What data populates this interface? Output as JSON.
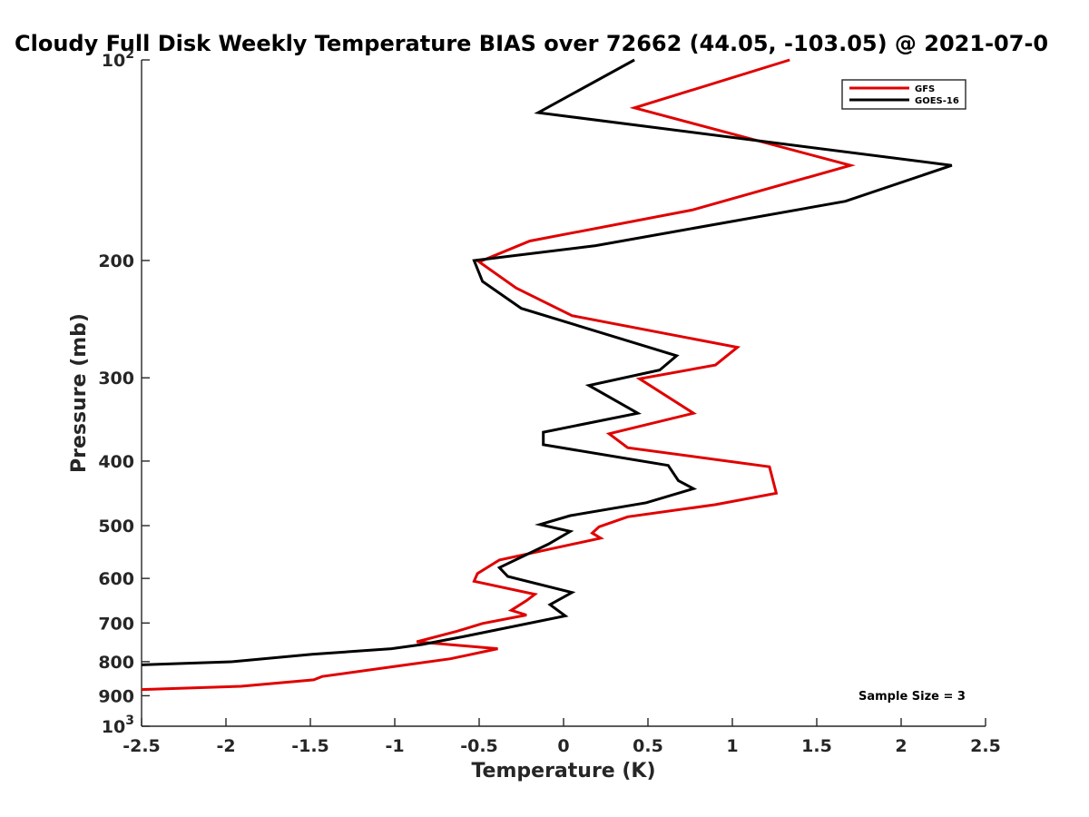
{
  "chart_data": {
    "type": "line",
    "title": "Cloudy Full Disk Weekly Temperature BIAS over 72662 (44.05, -103.05) @ 2021-07-0",
    "xlabel": "Temperature (K)",
    "ylabel": "Pressure (mb)",
    "xlim": [
      -2.5,
      2.5
    ],
    "ylim": [
      1000,
      100
    ],
    "y_scale": "log",
    "y_reversed": true,
    "grid": false,
    "legend_position": "top-right",
    "x_ticks": [
      "-2.5",
      "-2",
      "-1.5",
      "-1",
      "-0.5",
      "0",
      "0.5",
      "1",
      "1.5",
      "2",
      "2.5"
    ],
    "y_ticks": [
      {
        "value": 100,
        "label": "10",
        "sup": "2"
      },
      {
        "value": 200,
        "label": "200"
      },
      {
        "value": 300,
        "label": "300"
      },
      {
        "value": 400,
        "label": "400"
      },
      {
        "value": 500,
        "label": "500"
      },
      {
        "value": 600,
        "label": "600"
      },
      {
        "value": 700,
        "label": "700"
      },
      {
        "value": 800,
        "label": "800"
      },
      {
        "value": 900,
        "label": "900"
      },
      {
        "value": 1000,
        "label": "10",
        "sup": "3"
      }
    ],
    "annotation": "Sample Size = 3",
    "series": [
      {
        "name": "GFS",
        "color": "#e00000",
        "points": [
          [
            1.34,
            100
          ],
          [
            0.42,
            118
          ],
          [
            1.7,
            144
          ],
          [
            0.76,
            168
          ],
          [
            -0.2,
            187
          ],
          [
            -0.5,
            201
          ],
          [
            -0.28,
            220
          ],
          [
            0.05,
            242
          ],
          [
            1.03,
            270
          ],
          [
            0.9,
            287
          ],
          [
            0.45,
            301
          ],
          [
            0.77,
            339
          ],
          [
            0.27,
            364
          ],
          [
            0.38,
            382
          ],
          [
            1.22,
            408
          ],
          [
            1.26,
            447
          ],
          [
            0.9,
            465
          ],
          [
            0.38,
            485
          ],
          [
            0.21,
            502
          ],
          [
            0.17,
            513
          ],
          [
            0.22,
            522
          ],
          [
            -0.38,
            563
          ],
          [
            -0.51,
            590
          ],
          [
            -0.53,
            606
          ],
          [
            -0.17,
            634
          ],
          [
            -0.22,
            648
          ],
          [
            -0.31,
            670
          ],
          [
            -0.22,
            681
          ],
          [
            -0.48,
            701
          ],
          [
            -0.63,
            720
          ],
          [
            -0.87,
            747
          ],
          [
            -0.39,
            765
          ],
          [
            -0.67,
            792
          ],
          [
            -0.98,
            812
          ],
          [
            -1.43,
            842
          ],
          [
            -1.48,
            852
          ],
          [
            -1.91,
            871
          ],
          [
            -2.5,
            881
          ]
        ]
      },
      {
        "name": "GOES-16",
        "color": "#000000",
        "points": [
          [
            0.42,
            100
          ],
          [
            -0.15,
            120
          ],
          [
            2.3,
            144
          ],
          [
            1.67,
            163
          ],
          [
            0.19,
            190
          ],
          [
            -0.53,
            200
          ],
          [
            -0.48,
            215
          ],
          [
            -0.25,
            236
          ],
          [
            0.67,
            278
          ],
          [
            0.57,
            292
          ],
          [
            0.15,
            308
          ],
          [
            0.44,
            339
          ],
          [
            -0.12,
            362
          ],
          [
            -0.12,
            378
          ],
          [
            0.62,
            406
          ],
          [
            0.68,
            428
          ],
          [
            0.77,
            440
          ],
          [
            0.49,
            462
          ],
          [
            0.04,
            483
          ],
          [
            -0.14,
            498
          ],
          [
            0.04,
            510
          ],
          [
            -0.09,
            533
          ],
          [
            -0.38,
            578
          ],
          [
            -0.33,
            596
          ],
          [
            0.05,
            630
          ],
          [
            -0.08,
            657
          ],
          [
            0.01,
            683
          ],
          [
            -0.61,
            735
          ],
          [
            -0.84,
            754
          ],
          [
            -1.02,
            765
          ],
          [
            -1.49,
            780
          ],
          [
            -1.96,
            800
          ],
          [
            -2.5,
            809
          ]
        ]
      }
    ]
  }
}
